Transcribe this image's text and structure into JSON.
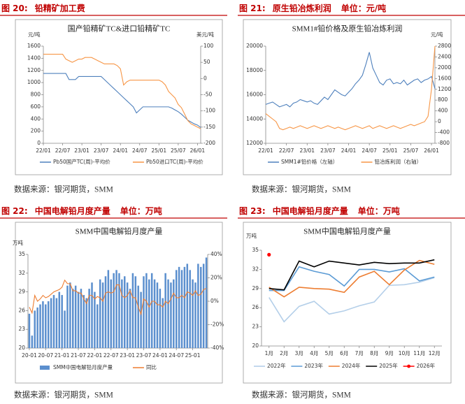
{
  "figures": [
    {
      "label": "图 20:",
      "heading": "铅精矿加工费",
      "source": "数据来源：银河期货，SMM"
    },
    {
      "label": "图 21:",
      "heading": "原生铅冶炼利润",
      "unit": "单位：元/吨",
      "source": "数据来源：银河期货，SMM"
    },
    {
      "label": "图 22:",
      "heading": "中国电解铅月度产量",
      "unit": "单位：万吨",
      "source": "数据来源：银河期货，SMM"
    },
    {
      "label": "图 23:",
      "heading": "中国电解铅月度产量",
      "unit": "单位：万吨",
      "source": "数据来源：银河期货，SMM"
    }
  ],
  "chart_data": [
    {
      "type": "line",
      "title": "国产铅精矿TC&进口铅精矿TC",
      "y_unit": "元/吨",
      "y2_unit": "美元/吨",
      "categories": [
        "22/01",
        null,
        null,
        null,
        null,
        null,
        "22/07",
        null,
        null,
        null,
        null,
        null,
        "23/01",
        null,
        null,
        null,
        null,
        null,
        "23/07",
        null,
        null,
        null,
        null,
        null,
        "24/01",
        null,
        null,
        null,
        null,
        null,
        "24/07",
        null,
        null,
        null,
        null,
        null,
        "25/01",
        null,
        null,
        null,
        null,
        null,
        "25/07",
        null,
        null,
        null,
        null,
        null,
        "26/01",
        null
      ],
      "ylim": [
        0,
        1600
      ],
      "yticks": [
        0,
        200,
        400,
        600,
        800,
        1000,
        1200,
        1400,
        1600
      ],
      "y2lim": [
        -200,
        100
      ],
      "y2ticks": [
        -200,
        -150,
        -100,
        -50,
        0,
        50,
        100
      ],
      "series": [
        {
          "name": "Pb50国产TC(周)-平均价",
          "color": "#4f81bd",
          "values": [
            1150,
            1150,
            1150,
            1150,
            1150,
            1150,
            1150,
            1150,
            1050,
            1050,
            1050,
            1100,
            1100,
            1100,
            1100,
            1100,
            1100,
            1100,
            1100,
            1050,
            1000,
            950,
            900,
            850,
            800,
            750,
            700,
            650,
            600,
            500,
            550,
            600,
            600,
            600,
            600,
            600,
            600,
            600,
            600,
            600,
            580,
            550,
            520,
            480,
            430,
            380,
            350,
            320,
            300,
            260
          ]
        },
        {
          "name": "Pb50进口TC(周)-平均价",
          "color": "#f79646",
          "axis": "y2",
          "values": [
            75,
            75,
            75,
            75,
            75,
            75,
            75,
            60,
            55,
            50,
            55,
            60,
            60,
            65,
            65,
            65,
            60,
            55,
            50,
            45,
            45,
            45,
            45,
            40,
            30,
            -20,
            -10,
            -5,
            -5,
            -5,
            -5,
            -5,
            -5,
            -5,
            -5,
            -5,
            -5,
            -10,
            -20,
            -40,
            -50,
            -60,
            -80,
            -90,
            -110,
            -130,
            -140,
            -145,
            -150,
            -155
          ]
        }
      ]
    },
    {
      "type": "line",
      "title": "SMM1#铅价格及原生铅冶炼利润",
      "y2_unit": "元/吨",
      "categories": [
        "22/01",
        null,
        null,
        null,
        null,
        null,
        "22/07",
        null,
        null,
        null,
        null,
        null,
        "23/01",
        null,
        null,
        null,
        null,
        null,
        "23/07",
        null,
        null,
        null,
        null,
        null,
        "24/01",
        null,
        null,
        null,
        null,
        null,
        "24/07",
        null,
        null,
        null,
        null,
        null,
        "25/01",
        null,
        null,
        null,
        null,
        null,
        "25/07",
        null,
        null,
        null,
        null,
        null,
        "26/01",
        null
      ],
      "ylim": [
        12000,
        20000
      ],
      "yticks": [
        12000,
        14000,
        16000,
        18000,
        20000
      ],
      "y2lim": [
        -800,
        2800
      ],
      "y2ticks": [
        -800,
        -400,
        0,
        400,
        800,
        1200,
        1600,
        2000,
        2400,
        2800
      ],
      "series": [
        {
          "name": "SMM1#铅价格（左轴）",
          "color": "#4f81bd",
          "values": [
            15200,
            15300,
            15400,
            15200,
            15000,
            15100,
            15200,
            15000,
            15300,
            15400,
            15600,
            15500,
            15400,
            15500,
            15300,
            15200,
            15500,
            15800,
            15600,
            16000,
            16400,
            16200,
            16000,
            15900,
            16200,
            16500,
            16900,
            17200,
            17600,
            18500,
            19500,
            18200,
            17600,
            17000,
            16800,
            17200,
            17300,
            16900,
            17000,
            16900,
            17200,
            16800,
            17000,
            17200,
            17300,
            17000,
            17200,
            17300,
            17500,
            16500
          ]
        },
        {
          "name": "铅冶炼利润（右轴）",
          "color": "#f79646",
          "axis": "y2",
          "values": [
            300,
            200,
            100,
            0,
            -250,
            -300,
            -250,
            -200,
            -250,
            -200,
            -150,
            -200,
            -250,
            -200,
            -150,
            -200,
            -250,
            -200,
            -150,
            -200,
            -250,
            -200,
            -250,
            -300,
            -250,
            -200,
            -150,
            -200,
            -250,
            -200,
            -150,
            -250,
            -200,
            -150,
            -200,
            -250,
            -200,
            -150,
            -200,
            -250,
            -200,
            -150,
            -100,
            -150,
            -100,
            -50,
            0,
            200,
            1200,
            2800
          ]
        }
      ]
    },
    {
      "type": "bar",
      "title": "SMM中国电解铅月度产量",
      "y_unit": "万吨",
      "categories": [
        "20-01",
        null,
        null,
        null,
        null,
        null,
        "20-07",
        null,
        null,
        null,
        null,
        null,
        "21-01",
        null,
        null,
        null,
        null,
        null,
        "21-07",
        null,
        null,
        null,
        null,
        null,
        "22-01",
        null,
        null,
        null,
        null,
        null,
        "22-07",
        null,
        null,
        null,
        null,
        null,
        "23-01",
        null,
        null,
        null,
        null,
        null,
        "23-07",
        null,
        null,
        null,
        null,
        null,
        "24-01",
        null,
        null,
        null,
        null,
        null,
        "24-07",
        null,
        null,
        null,
        null,
        null,
        "25-01",
        null,
        null,
        null,
        null,
        null
      ],
      "ylim": [
        20,
        35
      ],
      "yticks": [
        20,
        23,
        26,
        29,
        32,
        35
      ],
      "y2lim": [
        -40,
        40
      ],
      "y2ticks": [
        {
          "value": -40,
          "label": "-40%"
        },
        {
          "value": -20,
          "label": "-20%"
        },
        {
          "value": 0,
          "label": "0%"
        },
        {
          "value": 20,
          "label": "20%"
        },
        {
          "value": 40,
          "label": "40%"
        }
      ],
      "series": [
        {
          "name": "SMM中国电解铅月度产量",
          "type": "bar",
          "color": "#5b8fce",
          "values": [
            25.5,
            22.0,
            26.0,
            26.5,
            27.0,
            27.5,
            27.0,
            27.5,
            28.0,
            28.5,
            28.0,
            29.0,
            28.5,
            26.0,
            30.0,
            30.5,
            29.5,
            30.0,
            29.0,
            29.5,
            28.5,
            28.0,
            29.5,
            30.5,
            29.0,
            27.0,
            31.0,
            30.5,
            31.5,
            32.5,
            31.0,
            32.0,
            32.5,
            32.0,
            31.0,
            31.5,
            30.5,
            29.5,
            32.0,
            31.5,
            30.0,
            29.0,
            31.5,
            32.0,
            31.0,
            32.0,
            31.0,
            30.5,
            29.5,
            28.0,
            32.0,
            31.0,
            30.5,
            31.0,
            32.5,
            33.0,
            32.5,
            33.0,
            33.5,
            32.5,
            31.0,
            30.5,
            33.5,
            33.0,
            33.5,
            34.5
          ]
        },
        {
          "name": "同比",
          "type": "line",
          "color": "#ed7d31",
          "axis": "y2",
          "values": [
            -5,
            -10,
            5,
            0,
            2,
            5,
            3,
            4,
            6,
            8,
            9,
            10,
            12,
            18,
            15,
            15,
            9,
            9,
            7,
            7,
            2,
            -2,
            5,
            5,
            2,
            4,
            3,
            0,
            7,
            8,
            7,
            8,
            14,
            14,
            5,
            3,
            5,
            9,
            3,
            3,
            -5,
            -11,
            2,
            0,
            -5,
            0,
            0,
            -3,
            -3,
            -5,
            0,
            -2,
            2,
            7,
            3,
            3,
            5,
            3,
            8,
            7,
            5,
            9,
            5,
            6,
            10,
            11
          ]
        }
      ]
    },
    {
      "type": "line",
      "title": "SMM中国电解铅月度产量",
      "y_unit": "万吨",
      "categories": [
        "1月",
        "2月",
        "3月",
        "4月",
        "5月",
        "6月",
        "7月",
        "8月",
        "9月",
        "10月",
        "11月",
        "12月"
      ],
      "ylim": [
        20,
        35
      ],
      "yticks": [
        20,
        23,
        26,
        29,
        32,
        35
      ],
      "series": [
        {
          "name": "2022年",
          "color": "#b4cfe9",
          "values": [
            27.6,
            23.8,
            26.2,
            27.0,
            25.0,
            25.5,
            26.3,
            26.9,
            29.5,
            29.6,
            30.0,
            30.7
          ]
        },
        {
          "name": "2023年",
          "color": "#5b9bd5",
          "values": [
            28.7,
            28.7,
            32.4,
            31.7,
            31.2,
            29.4,
            32.0,
            32.0,
            31.6,
            32.1,
            30.2,
            30.8
          ]
        },
        {
          "name": "2024年",
          "color": "#ed7d31",
          "values": [
            29.2,
            27.7,
            29.2,
            29.0,
            28.9,
            28.4,
            30.8,
            31.7,
            29.6,
            31.9,
            33.4,
            32.8
          ]
        },
        {
          "name": "2025年",
          "color": "#000000",
          "values": [
            29.0,
            28.8,
            33.3,
            32.4,
            33.3,
            33.0,
            32.7,
            33.1,
            32.9,
            33.0,
            33.0,
            33.5
          ]
        },
        {
          "name": "2026年",
          "color": "#ff0000",
          "marker": true,
          "values": [
            34.3,
            null,
            null,
            null,
            null,
            null,
            null,
            null,
            null,
            null,
            null,
            null
          ]
        }
      ]
    }
  ]
}
